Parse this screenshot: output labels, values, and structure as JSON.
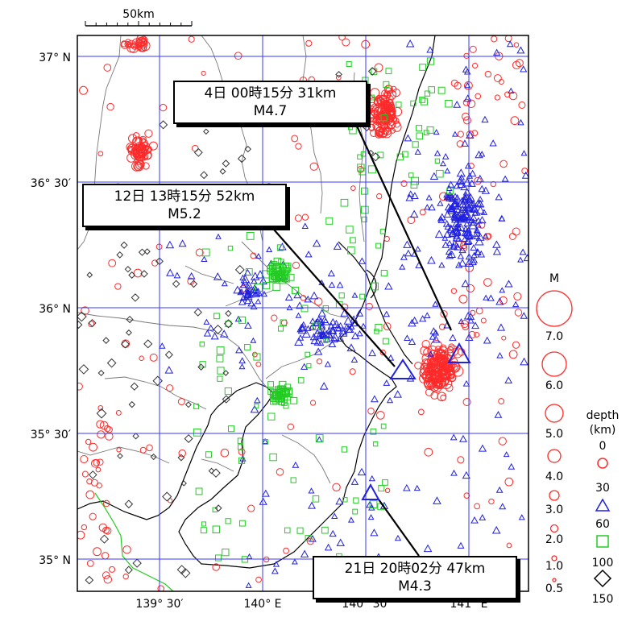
{
  "scale_bar": {
    "label": "50km"
  },
  "lat_labels": [
    "37° N",
    "36° 30′",
    "36° N",
    "35° 30′",
    "35° N"
  ],
  "lon_labels": [
    "139° 30′",
    "140° E",
    "140° 30′",
    "141° E"
  ],
  "callouts": [
    {
      "line1": "4日 00時15分 31km",
      "line2": "M4.7"
    },
    {
      "line1": "12日 13時15分 52km",
      "line2": "M5.2"
    },
    {
      "line1": "21日 20時02分 47km",
      "line2": "M4.3"
    }
  ],
  "legend": {
    "magnitude_title": "M",
    "magnitudes": [
      "7.0",
      "6.0",
      "5.0",
      "4.0",
      "3.0",
      "2.0",
      "1.0",
      "0.5"
    ],
    "depth_title_1": "depth",
    "depth_title_2": "(km)",
    "depths": [
      "0",
      "30",
      "60",
      "100",
      "150"
    ]
  },
  "colors": {
    "grid": "#3a3aff",
    "shallow_red": "#ff2a2a",
    "mid_blue": "#2020e0",
    "deep_green": "#22cc22",
    "deepest_black": "#333333",
    "coast": "#000000",
    "prefecture": "#777777",
    "green_line": "#22cc22"
  }
}
